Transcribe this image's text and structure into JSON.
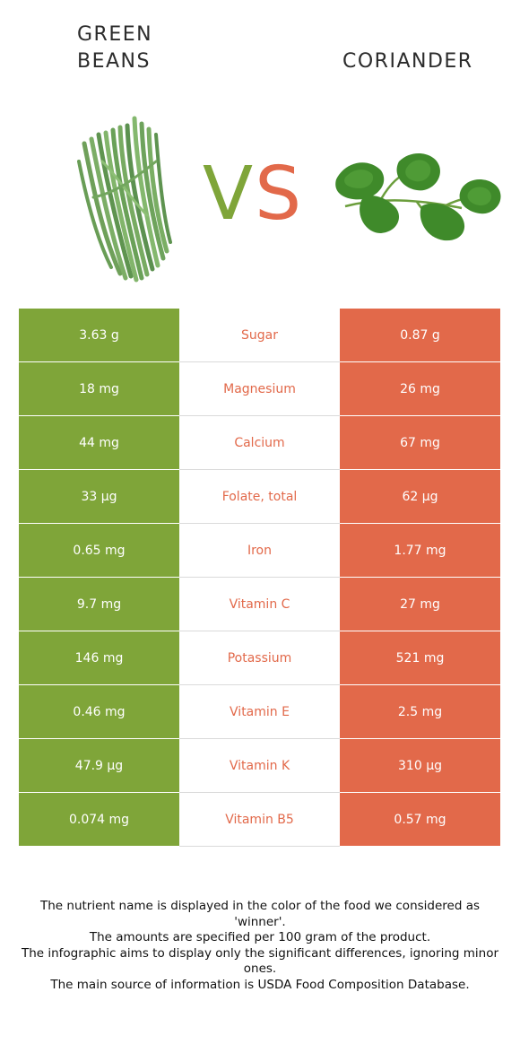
{
  "header": {
    "left_title_line1": "GREEN",
    "left_title_line2": "BEANS",
    "right_title": "CORIANDER",
    "vs_v": "V",
    "vs_s": "S"
  },
  "colors": {
    "left_food": "#7fa539",
    "right_food": "#e2694a"
  },
  "icons": {
    "left_food_image": "green-beans-icon",
    "right_food_image": "coriander-icon"
  },
  "rows": [
    {
      "left": "3.63 g",
      "nutrient": "Sugar",
      "right": "0.87 g"
    },
    {
      "left": "18 mg",
      "nutrient": "Magnesium",
      "right": "26 mg"
    },
    {
      "left": "44 mg",
      "nutrient": "Calcium",
      "right": "67 mg"
    },
    {
      "left": "33 µg",
      "nutrient": "Folate, total",
      "right": "62 µg"
    },
    {
      "left": "0.65 mg",
      "nutrient": "Iron",
      "right": "1.77 mg"
    },
    {
      "left": "9.7 mg",
      "nutrient": "Vitamin C",
      "right": "27 mg"
    },
    {
      "left": "146 mg",
      "nutrient": "Potassium",
      "right": "521 mg"
    },
    {
      "left": "0.46 mg",
      "nutrient": "Vitamin E",
      "right": "2.5 mg"
    },
    {
      "left": "47.9 µg",
      "nutrient": "Vitamin K",
      "right": "310 µg"
    },
    {
      "left": "0.074 mg",
      "nutrient": "Vitamin B5",
      "right": "0.57 mg"
    }
  ],
  "footer": {
    "line1": "The nutrient name is displayed in the color of the food we considered as 'winner'.",
    "line2": "The amounts are specified per 100 gram of the product.",
    "line3": "The infographic aims to display only the significant differences, ignoring minor ones.",
    "line4": "The main source of information is USDA Food Composition Database."
  }
}
